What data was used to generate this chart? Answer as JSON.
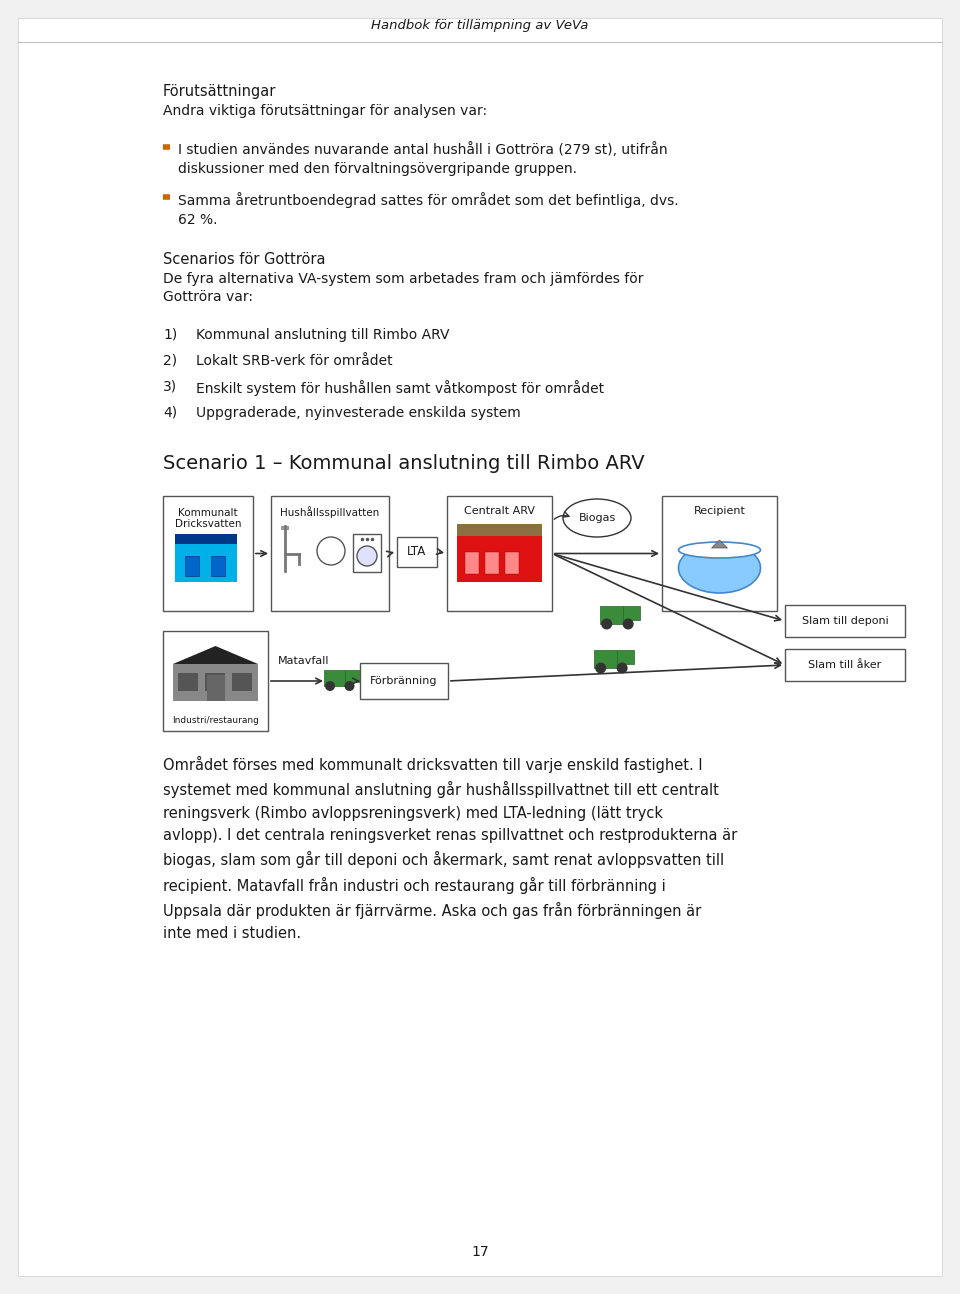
{
  "page_title": "Handbok för tillämpning av VeVa",
  "page_number": "17",
  "bg_color": "#f0f0f0",
  "page_bg": "#ffffff",
  "section1_heading": "Förutsättningar",
  "section1_sub": "Andra viktiga förutsättningar för analysen var:",
  "bullet_color": "#cc6600",
  "bullet1": "I studien användes nuvarande antal hushåll i Gottröra (279 st), utifrån\ndiskussioner med den förvaltningsövergripande gruppen.",
  "bullet2": "Samma åretruntboendegrad sattes för området som det befintliga, dvs.\n62 %.",
  "section2_heading": "Scenarios för Gottröra",
  "section2_sub1": "De fyra alternativa VA-system som arbetades fram och jämfördes för",
  "section2_sub2": "Gottröra var:",
  "num1": "Kommunal anslutning till Rimbo ARV",
  "num2": "Lokalt SRB-verk för området",
  "num3": "Enskilt system för hushållen samt våtkompost för området",
  "num4": "Uppgraderade, nyinvesterade enskilda system",
  "scenario_title": "Scenario 1 – Kommunal anslutning till Rimbo ARV",
  "body_line1": "Området förses med kommunalt dricksvatten till varje enskild fastighet. I",
  "body_line2": "systemet med kommunal anslutning går hushållsspillvattnet till ett centralt",
  "body_line3": "reningsverk (Rimbo avloppsreningsverk) med LTA-ledning (lätt tryck",
  "body_line4": "avlopp). I det centrala reningsverket renas spillvattnet och restprodukterna är",
  "body_line5": "biogas, slam som går till deponi och åkermark, samt renat avloppsvatten till",
  "body_line6": "recipient. Matavfall från industri och restaurang går till förbränning i",
  "body_line7": "Uppsala där produkten är fjärrvärme. Aska och gas från förbränningen är",
  "body_line8": "inte med i studien.",
  "tc": "#1a1a1a",
  "ec": "#555555",
  "truck_green": "#3a8c3a",
  "truck_dark": "#226622",
  "truck_light": "#55bb55"
}
